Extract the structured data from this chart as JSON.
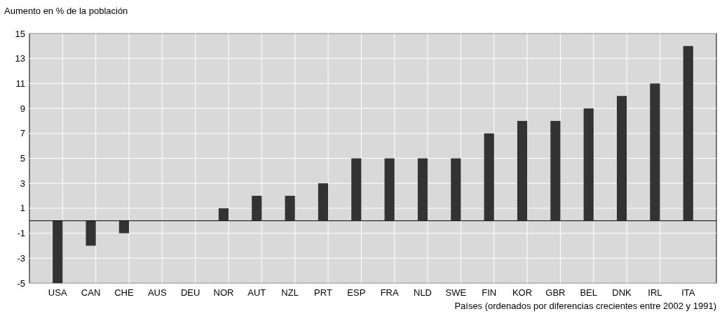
{
  "chart_data": {
    "type": "bar",
    "ylabel": "Aumento en % de la población",
    "xlabel": "Países (ordenados por diferencias crecientes entre 2002 y 1991)",
    "categories": [
      "USA",
      "CAN",
      "CHE",
      "AUS",
      "DEU",
      "NOR",
      "AUT",
      "NZL",
      "PRT",
      "ESP",
      "FRA",
      "NLD",
      "SWE",
      "FIN",
      "KOR",
      "GBR",
      "BEL",
      "DNK",
      "IRL",
      "ITA"
    ],
    "values": [
      -5,
      -2,
      -1,
      0,
      0,
      1,
      2,
      2,
      3,
      5,
      5,
      5,
      5,
      7,
      8,
      8,
      9,
      10,
      11,
      14
    ],
    "color": "#333333",
    "ylim": [
      -5,
      15
    ],
    "yticks": [
      -5,
      -3,
      -1,
      1,
      3,
      5,
      7,
      9,
      11,
      13,
      15
    ],
    "grid": true
  }
}
